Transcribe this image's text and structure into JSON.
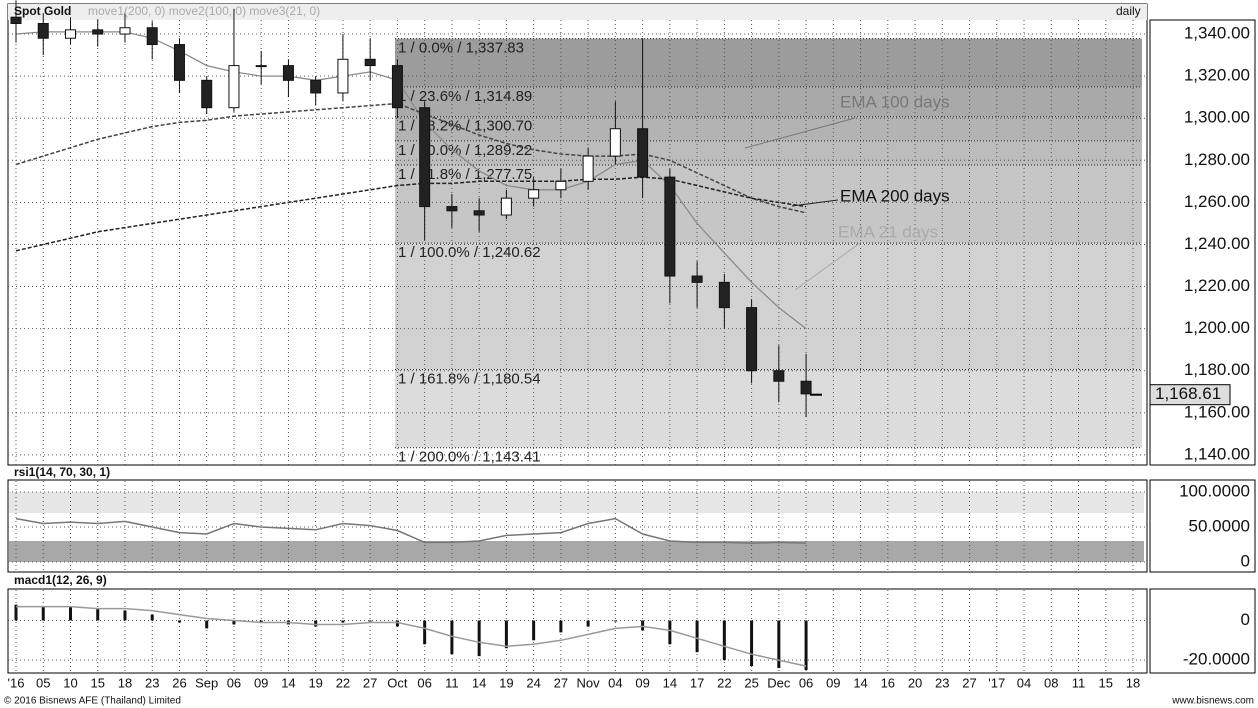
{
  "chart_data": [
    {
      "type": "candlestick",
      "title": "Spot Gold",
      "subtitle": "move1(200, 0) move2(100, 0) move3(21, 0)",
      "period": "daily",
      "categories": [
        "'16",
        "05",
        "10",
        "15",
        "18",
        "23",
        "26",
        "Sep",
        "06",
        "09",
        "14",
        "19",
        "22",
        "27",
        "Oct",
        "06",
        "11",
        "14",
        "19",
        "24",
        "27",
        "Nov",
        "04",
        "09",
        "14",
        "17",
        "22",
        "25",
        "Dec",
        "06",
        "09",
        "14",
        "16",
        "20",
        "23",
        "27",
        "'17",
        "04",
        "08",
        "11",
        "15",
        "18"
      ],
      "open": [
        1348,
        1345,
        1338,
        1342,
        1340,
        1343,
        1335,
        1318,
        1305,
        1325,
        1325,
        1318,
        1312,
        1328,
        1325,
        1305,
        1258,
        1256,
        1254,
        1262,
        1266,
        1270,
        1282,
        1295,
        1272,
        1225,
        1222,
        1210,
        1180,
        1175,
        null,
        null,
        null,
        null,
        null,
        null,
        null,
        null,
        null,
        null,
        null,
        null
      ],
      "high": [
        1356,
        1350,
        1348,
        1347,
        1350,
        1346,
        1338,
        1320,
        1352,
        1332,
        1328,
        1320,
        1340,
        1338,
        1328,
        1308,
        1264,
        1262,
        1266,
        1272,
        1276,
        1286,
        1308,
        1338,
        1276,
        1232,
        1226,
        1214,
        1192,
        1188,
        null,
        null,
        null,
        null,
        null,
        null,
        null,
        null,
        null,
        null,
        null,
        null
      ],
      "low": [
        1336,
        1330,
        1335,
        1334,
        1336,
        1328,
        1312,
        1302,
        1303,
        1316,
        1310,
        1306,
        1308,
        1318,
        1300,
        1242,
        1248,
        1246,
        1252,
        1258,
        1262,
        1266,
        1278,
        1262,
        1212,
        1210,
        1200,
        1174,
        1165,
        1158,
        null,
        null,
        null,
        null,
        null,
        null,
        null,
        null,
        null,
        null,
        null,
        null
      ],
      "close": [
        1345,
        1338,
        1342,
        1340,
        1343,
        1335,
        1318,
        1305,
        1325,
        1325,
        1318,
        1312,
        1328,
        1325,
        1305,
        1258,
        1256,
        1254,
        1262,
        1266,
        1270,
        1282,
        1295,
        1272,
        1225,
        1222,
        1210,
        1180,
        1175,
        1169,
        null,
        null,
        null,
        null,
        null,
        null,
        null,
        null,
        null,
        null,
        null,
        null
      ],
      "series": [
        {
          "name": "EMA 21 days",
          "color": "#8a8a8a",
          "values": [
            1340,
            1341,
            1341,
            1341,
            1341,
            1338,
            1332,
            1325,
            1322,
            1320,
            1320,
            1318,
            1320,
            1322,
            1318,
            1298,
            1285,
            1275,
            1268,
            1266,
            1266,
            1270,
            1278,
            1280,
            1268,
            1250,
            1236,
            1222,
            1210,
            1200,
            null,
            null,
            null,
            null,
            null,
            null,
            null,
            null,
            null,
            null,
            null,
            null
          ]
        },
        {
          "name": "EMA 100 days",
          "color": "#444444",
          "values": [
            1278,
            1282,
            1286,
            1290,
            1293,
            1296,
            1298,
            1299,
            1301,
            1302,
            1303,
            1304,
            1305,
            1306,
            1307,
            1302,
            1297,
            1292,
            1288,
            1285,
            1283,
            1282,
            1282,
            1283,
            1280,
            1274,
            1268,
            1262,
            1258,
            1255,
            null,
            null,
            null,
            null,
            null,
            null,
            null,
            null,
            null,
            null,
            null,
            null
          ]
        },
        {
          "name": "EMA 200 days",
          "color": "#222222",
          "values": [
            1237,
            1240,
            1243,
            1246,
            1248,
            1250,
            1252,
            1254,
            1256,
            1258,
            1260,
            1262,
            1264,
            1266,
            1268,
            1269,
            1269,
            1270,
            1270,
            1270,
            1270,
            1271,
            1271,
            1272,
            1271,
            1268,
            1265,
            1262,
            1260,
            1258,
            null,
            null,
            null,
            null,
            null,
            null,
            null,
            null,
            null,
            null,
            null,
            null
          ]
        }
      ],
      "fib_levels": [
        {
          "value": 1337.83,
          "label": "1 / 0.0% / 1,337.83"
        },
        {
          "value": 1314.89,
          "label": "1 / 23.6% / 1,314.89"
        },
        {
          "value": 1300.7,
          "label": "1 / 38.2% / 1,300.70"
        },
        {
          "value": 1289.22,
          "label": "1 / 50.0% / 1,289.22"
        },
        {
          "value": 1277.75,
          "label": "1 / 61.8% / 1,277.75"
        },
        {
          "value": 1240.62,
          "label": "1 / 100.0% / 1,240.62"
        },
        {
          "value": 1180.54,
          "label": "1 / 161.8% / 1,180.54"
        },
        {
          "value": 1143.41,
          "label": "1 / 200.0% / 1,143.41"
        }
      ],
      "last_price": {
        "value": 1168.61,
        "label": "1,168.61"
      },
      "ylim": [
        1135.2,
        1353.8
      ],
      "yticks": [
        {
          "value": 1340,
          "label": "1,340.00"
        },
        {
          "value": 1320,
          "label": "1,320.00"
        },
        {
          "value": 1300,
          "label": "1,300.00"
        },
        {
          "value": 1280,
          "label": "1,280.00"
        },
        {
          "value": 1260,
          "label": "1,260.00"
        },
        {
          "value": 1240,
          "label": "1,240.00"
        },
        {
          "value": 1220,
          "label": "1,220.00"
        },
        {
          "value": 1200,
          "label": "1,200.00"
        },
        {
          "value": 1180,
          "label": "1,180.00"
        },
        {
          "value": 1160,
          "label": "1,160.00"
        },
        {
          "value": 1140,
          "label": "1,140.00"
        }
      ],
      "grid": true
    },
    {
      "type": "line",
      "title": "rsi1(14, 70, 30, 1)",
      "series": [
        {
          "color": "#777777",
          "values": [
            62,
            55,
            57,
            55,
            58,
            50,
            42,
            40,
            55,
            50,
            48,
            46,
            55,
            52,
            45,
            28,
            28,
            30,
            38,
            40,
            42,
            55,
            62,
            40,
            30,
            28,
            28,
            27,
            28,
            27,
            null,
            null,
            null,
            null,
            null,
            null,
            null,
            null,
            null,
            null,
            null,
            null
          ]
        }
      ],
      "upper_band": [
        70,
        100
      ],
      "lower_band": [
        0,
        30
      ],
      "ylim": [
        -14.3,
        115.7
      ],
      "yticks": [
        {
          "value": 100,
          "label": "100.0000"
        },
        {
          "value": 50,
          "label": "50.0000"
        },
        0
      ],
      "grid": true
    },
    {
      "type": "macd",
      "title": "macd1(12, 26, 9)",
      "series": [
        {
          "color": "#111111",
          "values": [
            8,
            7,
            7,
            6,
            5,
            3,
            -1,
            -4,
            -2,
            -1,
            -2,
            -3,
            -1,
            0,
            -3,
            -12,
            -17,
            -18,
            -14,
            -10,
            -6,
            -3,
            0,
            -5,
            -12,
            -16,
            -20,
            -23,
            -24,
            -25,
            null,
            null,
            null,
            null,
            null,
            null,
            null,
            null,
            null,
            null,
            null,
            null
          ]
        },
        {
          "color": "#999999",
          "values": [
            7,
            7,
            7,
            6,
            6,
            5,
            3,
            1,
            0,
            -1,
            -1,
            -2,
            -2,
            -1,
            -1,
            -4,
            -8,
            -11,
            -13,
            -12,
            -10,
            -7,
            -4,
            -3,
            -5,
            -9,
            -13,
            -17,
            -20,
            -23,
            null,
            null,
            null,
            null,
            null,
            null,
            null,
            null,
            null,
            null,
            null,
            null
          ]
        }
      ],
      "ylim": [
        -26,
        15.4
      ],
      "yticks": [
        0,
        {
          "value": -20,
          "label": "-20.0000"
        }
      ],
      "grid": true
    }
  ],
  "footer": {
    "left": "© 2016 Bisnews AFE (Thailand) Limited",
    "right": "www.bisnews.com"
  }
}
